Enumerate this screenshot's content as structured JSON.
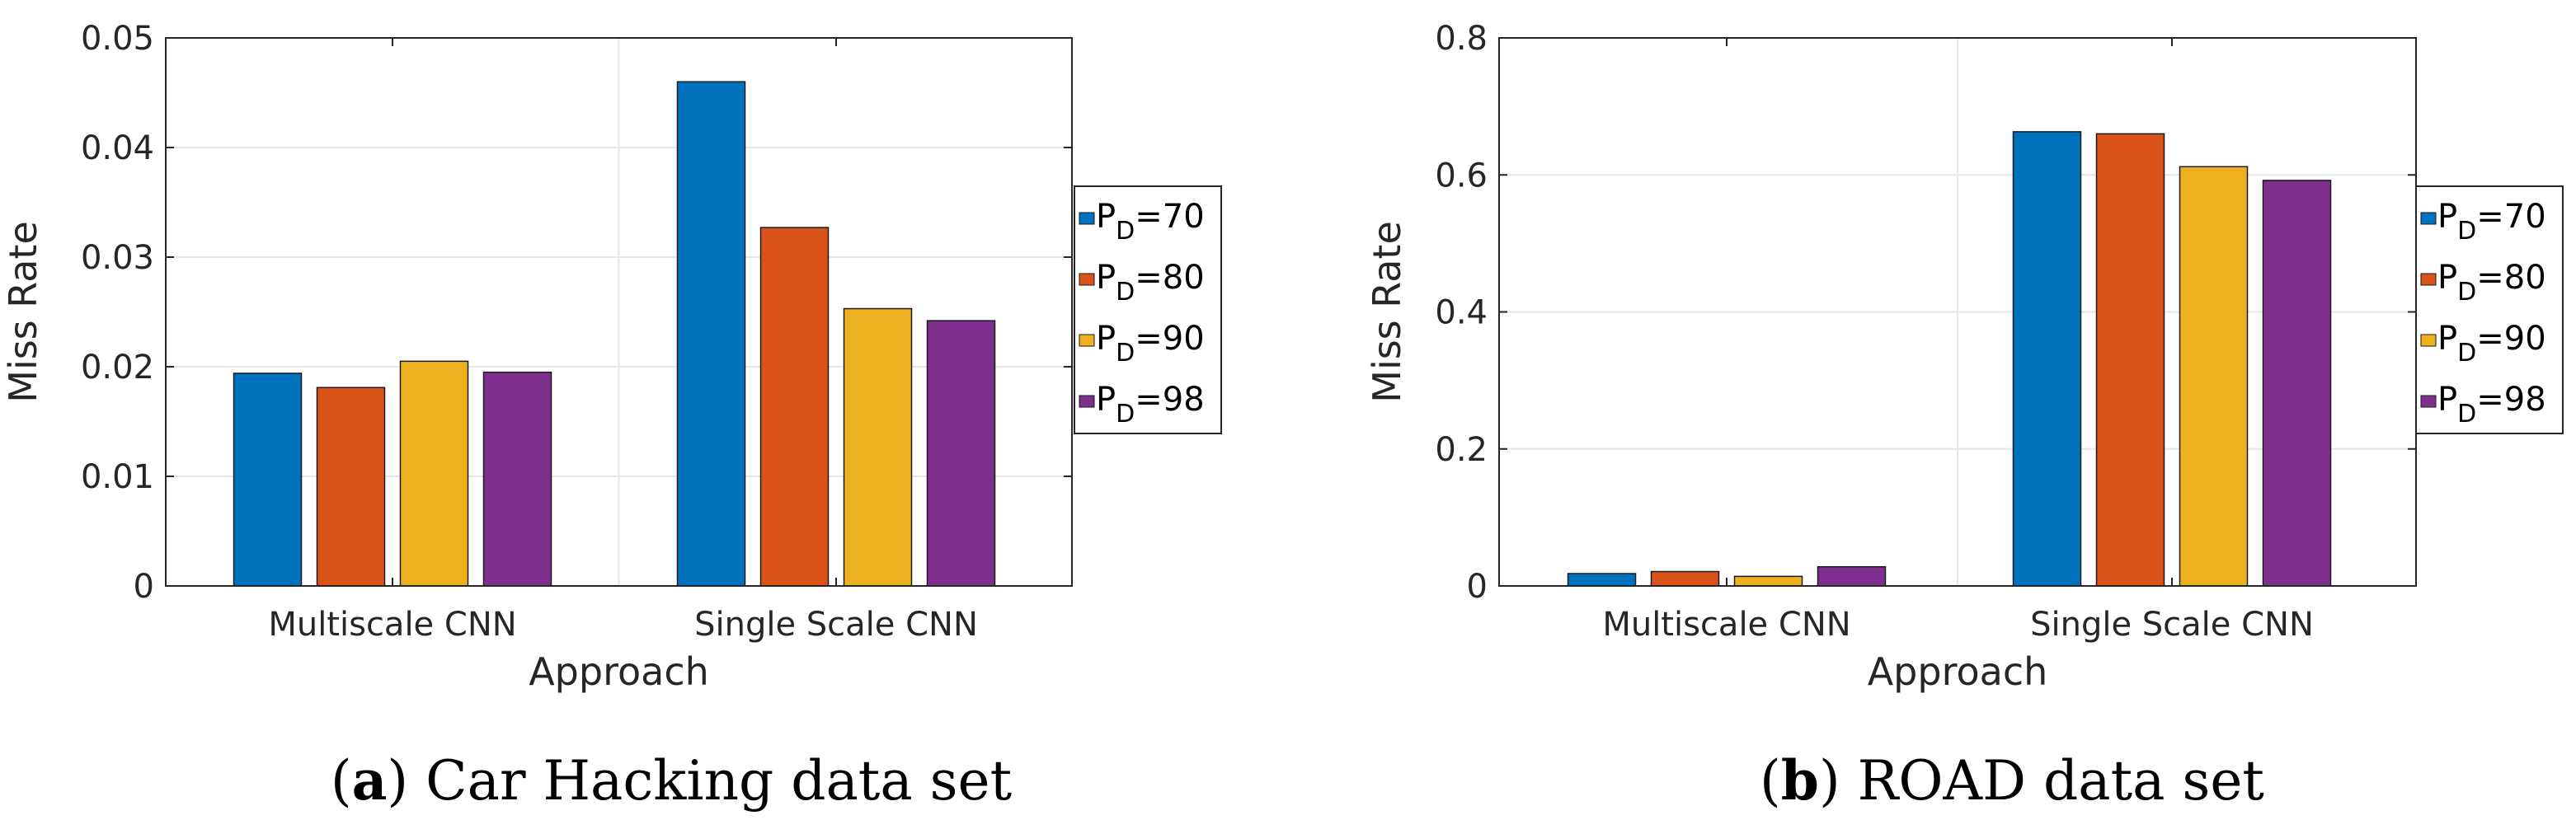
{
  "chart_data": [
    {
      "type": "bar",
      "caption_letter": "a",
      "caption_text": "Car Hacking data set",
      "xlabel": "Approach",
      "ylabel": "Miss Rate",
      "categories": [
        "Multiscale CNN",
        "Single Scale CNN"
      ],
      "ylim": [
        0,
        0.05
      ],
      "yticks": [
        0,
        0.01,
        0.02,
        0.03,
        0.04,
        0.05
      ],
      "ytick_labels": [
        "0",
        "0.01",
        "0.02",
        "0.03",
        "0.04",
        "0.05"
      ],
      "grid": true,
      "legend_position": "outside-right",
      "series": [
        {
          "name": "P_D=70",
          "label_main": "P",
          "label_sub": "D",
          "label_tail": "=70",
          "color": "#0072BD",
          "values": [
            0.0194,
            0.046
          ]
        },
        {
          "name": "P_D=80",
          "label_main": "P",
          "label_sub": "D",
          "label_tail": "=80",
          "color": "#D95319",
          "values": [
            0.0181,
            0.0327
          ]
        },
        {
          "name": "P_D=90",
          "label_main": "P",
          "label_sub": "D",
          "label_tail": "=90",
          "color": "#EDB120",
          "values": [
            0.0205,
            0.0253
          ]
        },
        {
          "name": "P_D=98",
          "label_main": "P",
          "label_sub": "D",
          "label_tail": "=98",
          "color": "#7E2F8E",
          "values": [
            0.0195,
            0.0242
          ]
        }
      ]
    },
    {
      "type": "bar",
      "caption_letter": "b",
      "caption_text": "ROAD data set",
      "xlabel": "Approach",
      "ylabel": "Miss Rate",
      "categories": [
        "Multiscale CNN",
        "Single Scale CNN"
      ],
      "ylim": [
        0,
        0.8
      ],
      "yticks": [
        0,
        0.2,
        0.4,
        0.6,
        0.8
      ],
      "ytick_labels": [
        "0",
        "0.2",
        "0.4",
        "0.6",
        "0.8"
      ],
      "grid": true,
      "legend_position": "outside-right",
      "series": [
        {
          "name": "P_D=70",
          "label_main": "P",
          "label_sub": "D",
          "label_tail": "=70",
          "color": "#0072BD",
          "values": [
            0.018,
            0.663
          ]
        },
        {
          "name": "P_D=80",
          "label_main": "P",
          "label_sub": "D",
          "label_tail": "=80",
          "color": "#D95319",
          "values": [
            0.021,
            0.66
          ]
        },
        {
          "name": "P_D=90",
          "label_main": "P",
          "label_sub": "D",
          "label_tail": "=90",
          "color": "#EDB120",
          "values": [
            0.014,
            0.612
          ]
        },
        {
          "name": "P_D=98",
          "label_main": "P",
          "label_sub": "D",
          "label_tail": "=98",
          "color": "#7E2F8E",
          "values": [
            0.028,
            0.592
          ]
        }
      ]
    }
  ]
}
